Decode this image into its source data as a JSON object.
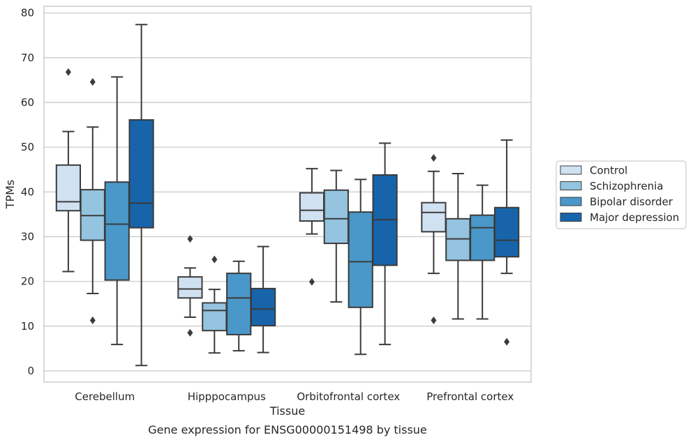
{
  "chart_data": {
    "type": "box",
    "title": "",
    "caption": "Gene expression for ENSG00000151498 by tissue",
    "xlabel": "Tissue",
    "ylabel": "TPMs",
    "ylim": [
      -2.5,
      81.5
    ],
    "yticks": [
      0,
      10,
      20,
      30,
      40,
      50,
      60,
      70,
      80
    ],
    "grid": "horizontal",
    "legend_position": "right-outside",
    "categories": [
      "Cerebellum",
      "Hipppocampus",
      "Orbitofrontal cortex",
      "Prefrontal cortex"
    ],
    "series": [
      {
        "name": "Control",
        "color": "#d0e1f2",
        "boxes": [
          {
            "whisker_low": 22.2,
            "q1": 35.8,
            "median": 37.8,
            "q3": 46.0,
            "whisker_high": 53.5,
            "outliers": [
              66.8
            ]
          },
          {
            "whisker_low": 12.0,
            "q1": 16.3,
            "median": 18.3,
            "q3": 21.0,
            "whisker_high": 23.0,
            "outliers": [
              29.5,
              8.5
            ]
          },
          {
            "whisker_low": 30.6,
            "q1": 33.5,
            "median": 35.9,
            "q3": 39.8,
            "whisker_high": 45.2,
            "outliers": [
              19.9
            ]
          },
          {
            "whisker_low": 21.8,
            "q1": 31.1,
            "median": 35.4,
            "q3": 37.6,
            "whisker_high": 44.6,
            "outliers": [
              47.6,
              11.3
            ]
          }
        ]
      },
      {
        "name": "Schizophrenia",
        "color": "#94c4df",
        "boxes": [
          {
            "whisker_low": 17.3,
            "q1": 29.2,
            "median": 34.7,
            "q3": 40.5,
            "whisker_high": 54.5,
            "outliers": [
              64.6,
              11.3
            ]
          },
          {
            "whisker_low": 4.0,
            "q1": 9.0,
            "median": 13.5,
            "q3": 15.2,
            "whisker_high": 18.2,
            "outliers": [
              24.9
            ]
          },
          {
            "whisker_low": 15.4,
            "q1": 28.5,
            "median": 34.0,
            "q3": 40.4,
            "whisker_high": 44.8,
            "outliers": []
          },
          {
            "whisker_low": 11.6,
            "q1": 24.7,
            "median": 29.5,
            "q3": 34.0,
            "whisker_high": 44.1,
            "outliers": []
          }
        ]
      },
      {
        "name": "Bipolar disorder",
        "color": "#4a98c9",
        "boxes": [
          {
            "whisker_low": 5.9,
            "q1": 20.3,
            "median": 32.8,
            "q3": 42.2,
            "whisker_high": 65.7,
            "outliers": []
          },
          {
            "whisker_low": 4.5,
            "q1": 8.1,
            "median": 16.3,
            "q3": 21.8,
            "whisker_high": 24.5,
            "outliers": []
          },
          {
            "whisker_low": 3.7,
            "q1": 14.2,
            "median": 24.4,
            "q3": 35.5,
            "whisker_high": 42.8,
            "outliers": []
          },
          {
            "whisker_low": 11.6,
            "q1": 24.7,
            "median": 32.0,
            "q3": 34.8,
            "whisker_high": 41.5,
            "outliers": []
          }
        ]
      },
      {
        "name": "Major depression",
        "color": "#1764ab",
        "boxes": [
          {
            "whisker_low": 1.2,
            "q1": 32.0,
            "median": 37.5,
            "q3": 56.1,
            "whisker_high": 77.4,
            "outliers": []
          },
          {
            "whisker_low": 4.1,
            "q1": 10.1,
            "median": 13.8,
            "q3": 18.4,
            "whisker_high": 27.8,
            "outliers": []
          },
          {
            "whisker_low": 5.9,
            "q1": 23.6,
            "median": 33.8,
            "q3": 43.8,
            "whisker_high": 50.9,
            "outliers": []
          },
          {
            "whisker_low": 21.8,
            "q1": 25.5,
            "median": 29.2,
            "q3": 36.5,
            "whisker_high": 51.6,
            "outliers": [
              6.5
            ]
          }
        ]
      }
    ],
    "colors": {
      "grid": "#cccccc",
      "frame": "#cccccc",
      "box_edge": "#3b3b3b",
      "text": "#262626"
    }
  }
}
